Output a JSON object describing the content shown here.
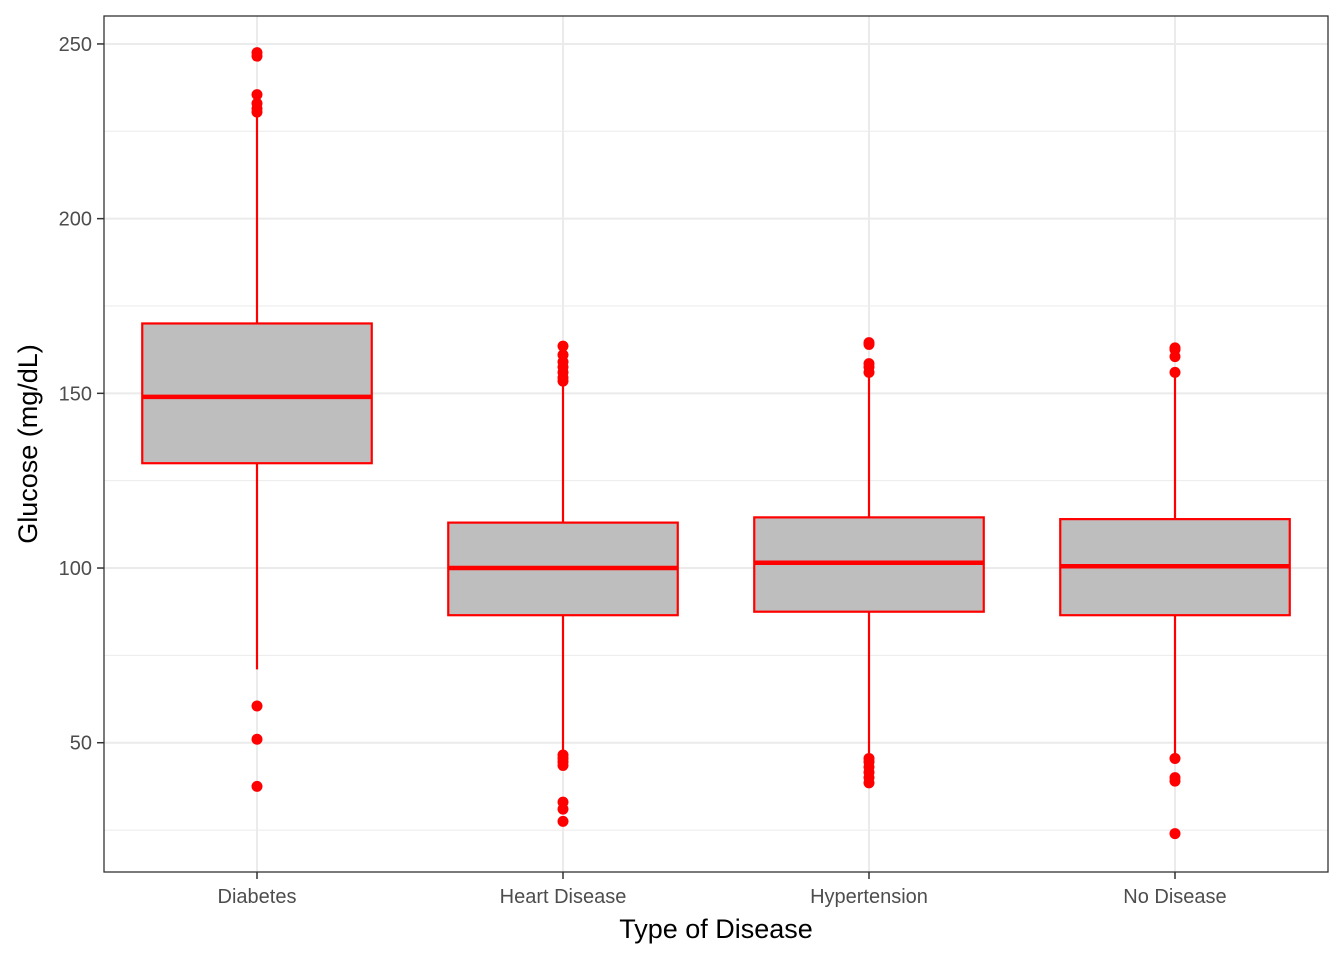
{
  "chart_data": {
    "type": "box",
    "title": "",
    "xlabel": "Type of Disease",
    "ylabel": "Glucose (mg/dL)",
    "categories": [
      "Diabetes",
      "Heart Disease",
      "Hypertension",
      "No Disease"
    ],
    "ylim": [
      13,
      258
    ],
    "yticks": [
      50,
      100,
      150,
      200,
      250
    ],
    "yticklabels": [
      "50",
      "100",
      "150",
      "200",
      "250"
    ],
    "grid": true,
    "legend": "none",
    "box_fill": "#bebebe",
    "box_color": "#ff0000",
    "boxes": [
      {
        "category": "Diabetes",
        "whisker_low": 71,
        "q1": 130,
        "median": 149,
        "q3": 170,
        "whisker_high": 230,
        "outliers": [
          37.5,
          51,
          60.5,
          230.5,
          231.5,
          233,
          235.5,
          246.5,
          247.5
        ]
      },
      {
        "category": "Heart Disease",
        "whisker_low": 47,
        "q1": 86.5,
        "median": 100,
        "q3": 113,
        "whisker_high": 153,
        "outliers": [
          27.5,
          31,
          33,
          43.5,
          44.5,
          45.5,
          46.5,
          153.5,
          154.5,
          156,
          157.5,
          159,
          161,
          163.5
        ]
      },
      {
        "category": "Hypertension",
        "whisker_low": 47,
        "q1": 87.5,
        "median": 101.5,
        "q3": 114.5,
        "whisker_high": 155,
        "outliers": [
          38.5,
          40,
          41.5,
          43,
          44.5,
          45.5,
          156,
          157.5,
          158.5,
          164,
          164.5
        ]
      },
      {
        "category": "No Disease",
        "whisker_low": 46.5,
        "q1": 86.5,
        "median": 100.5,
        "q3": 114,
        "whisker_high": 155,
        "outliers": [
          24,
          39,
          40,
          45.5,
          156,
          160.5,
          162.5,
          163
        ]
      }
    ]
  }
}
